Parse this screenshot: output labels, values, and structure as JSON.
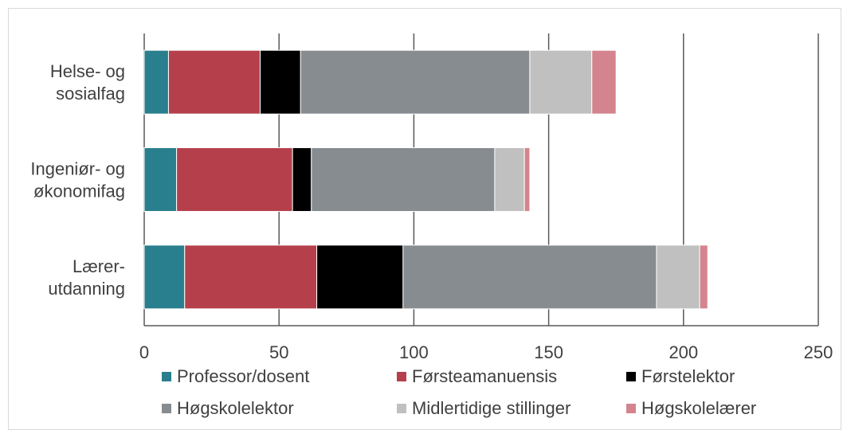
{
  "chart_data": {
    "type": "bar",
    "orientation": "horizontal",
    "stacked": true,
    "categories": [
      [
        "Helse- og",
        "sosialfag"
      ],
      [
        "Ingeniør- og",
        "økonomifag"
      ],
      [
        "Lærer-",
        "utdanning"
      ]
    ],
    "series": [
      {
        "name": "Professor/dosent",
        "color": "#2a7f8e",
        "values": [
          9,
          12,
          15
        ]
      },
      {
        "name": "Førsteamanuensis",
        "color": "#b5404c",
        "values": [
          34,
          43,
          49
        ]
      },
      {
        "name": "Førstelektor",
        "color": "#000000",
        "values": [
          15,
          7,
          32
        ]
      },
      {
        "name": "Høgskolelektor",
        "color": "#878c90",
        "values": [
          85,
          68,
          94
        ]
      },
      {
        "name": "Midlertidige stillinger",
        "color": "#c0c0c0",
        "values": [
          23,
          11,
          16
        ]
      },
      {
        "name": "Høgskolelærer",
        "color": "#d4848e",
        "values": [
          9,
          2,
          3
        ]
      }
    ],
    "xlim": [
      0,
      250
    ],
    "xticks": [
      0,
      50,
      100,
      150,
      200,
      250
    ],
    "grid": "vertical",
    "legend": "bottom"
  }
}
